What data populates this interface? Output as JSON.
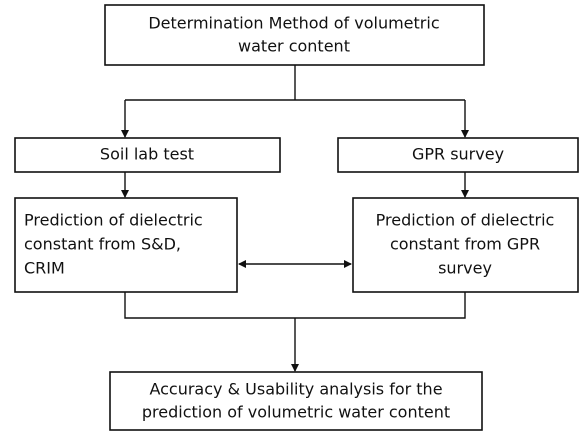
{
  "nodes": [
    {
      "lines": [
        "Determination Method of volumetric",
        "water content"
      ]
    },
    {
      "lines": [
        "Soil lab test"
      ]
    },
    {
      "lines": [
        "GPR survey"
      ]
    },
    {
      "lines": [
        "Prediction of dielectric",
        "constant from S&D,",
        "CRIM"
      ]
    },
    {
      "lines": [
        "Prediction of dielectric",
        "constant from GPR",
        "survey"
      ]
    },
    {
      "lines": [
        "Accuracy & Usability analysis for the",
        "prediction of volumetric water content"
      ]
    }
  ]
}
